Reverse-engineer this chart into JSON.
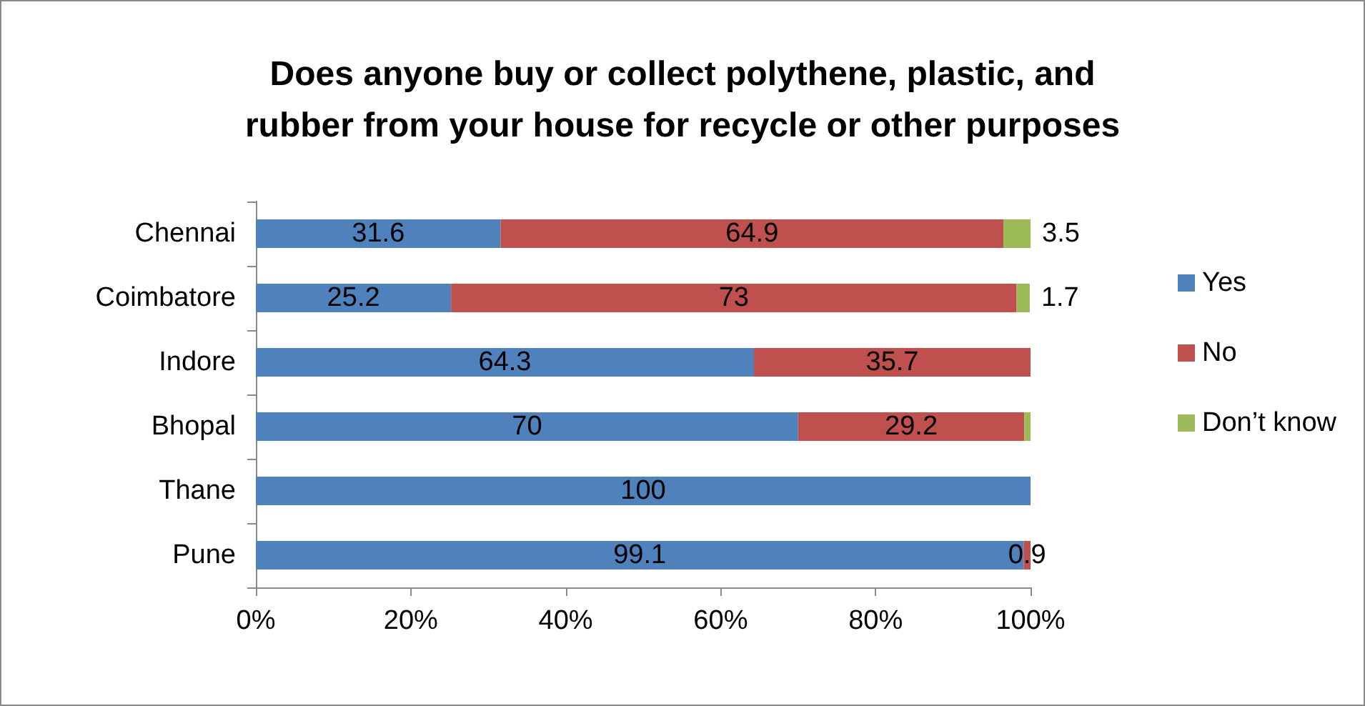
{
  "chart_data": {
    "type": "bar",
    "orientation": "horizontal",
    "stacked": true,
    "title": "Does anyone buy or collect polythene, plastic, and\nrubber from your house for recycle or other purposes",
    "categories": [
      "Chennai",
      "Coimbatore",
      "Indore",
      "Bhopal",
      "Thane",
      "Pune"
    ],
    "series": [
      {
        "name": "Yes",
        "color": "#4f81bd",
        "values": [
          31.6,
          25.2,
          64.3,
          70,
          100,
          99.1
        ],
        "value_labels": [
          "31.6",
          "25.2",
          "64.3",
          "70",
          "100",
          "99.1"
        ]
      },
      {
        "name": "No",
        "color": "#c0504d",
        "values": [
          64.9,
          73,
          35.7,
          29.2,
          null,
          0.9
        ],
        "value_labels": [
          "64.9",
          "73",
          "35.7",
          "29.2",
          null,
          "0.9"
        ]
      },
      {
        "name": "Don’t know",
        "color": "#9bbb59",
        "values": [
          3.5,
          1.7,
          null,
          0.8,
          null,
          null
        ],
        "value_labels": [
          "3.5",
          "1.7",
          null,
          null,
          null,
          null
        ]
      }
    ],
    "xlim": [
      0,
      100
    ],
    "xticks": [
      {
        "value": 0,
        "label": "0%"
      },
      {
        "value": 20,
        "label": "20%"
      },
      {
        "value": 40,
        "label": "40%"
      },
      {
        "value": 60,
        "label": "60%"
      },
      {
        "value": 80,
        "label": "80%"
      },
      {
        "value": 100,
        "label": "100%"
      }
    ],
    "grid": false,
    "legend": "right"
  }
}
